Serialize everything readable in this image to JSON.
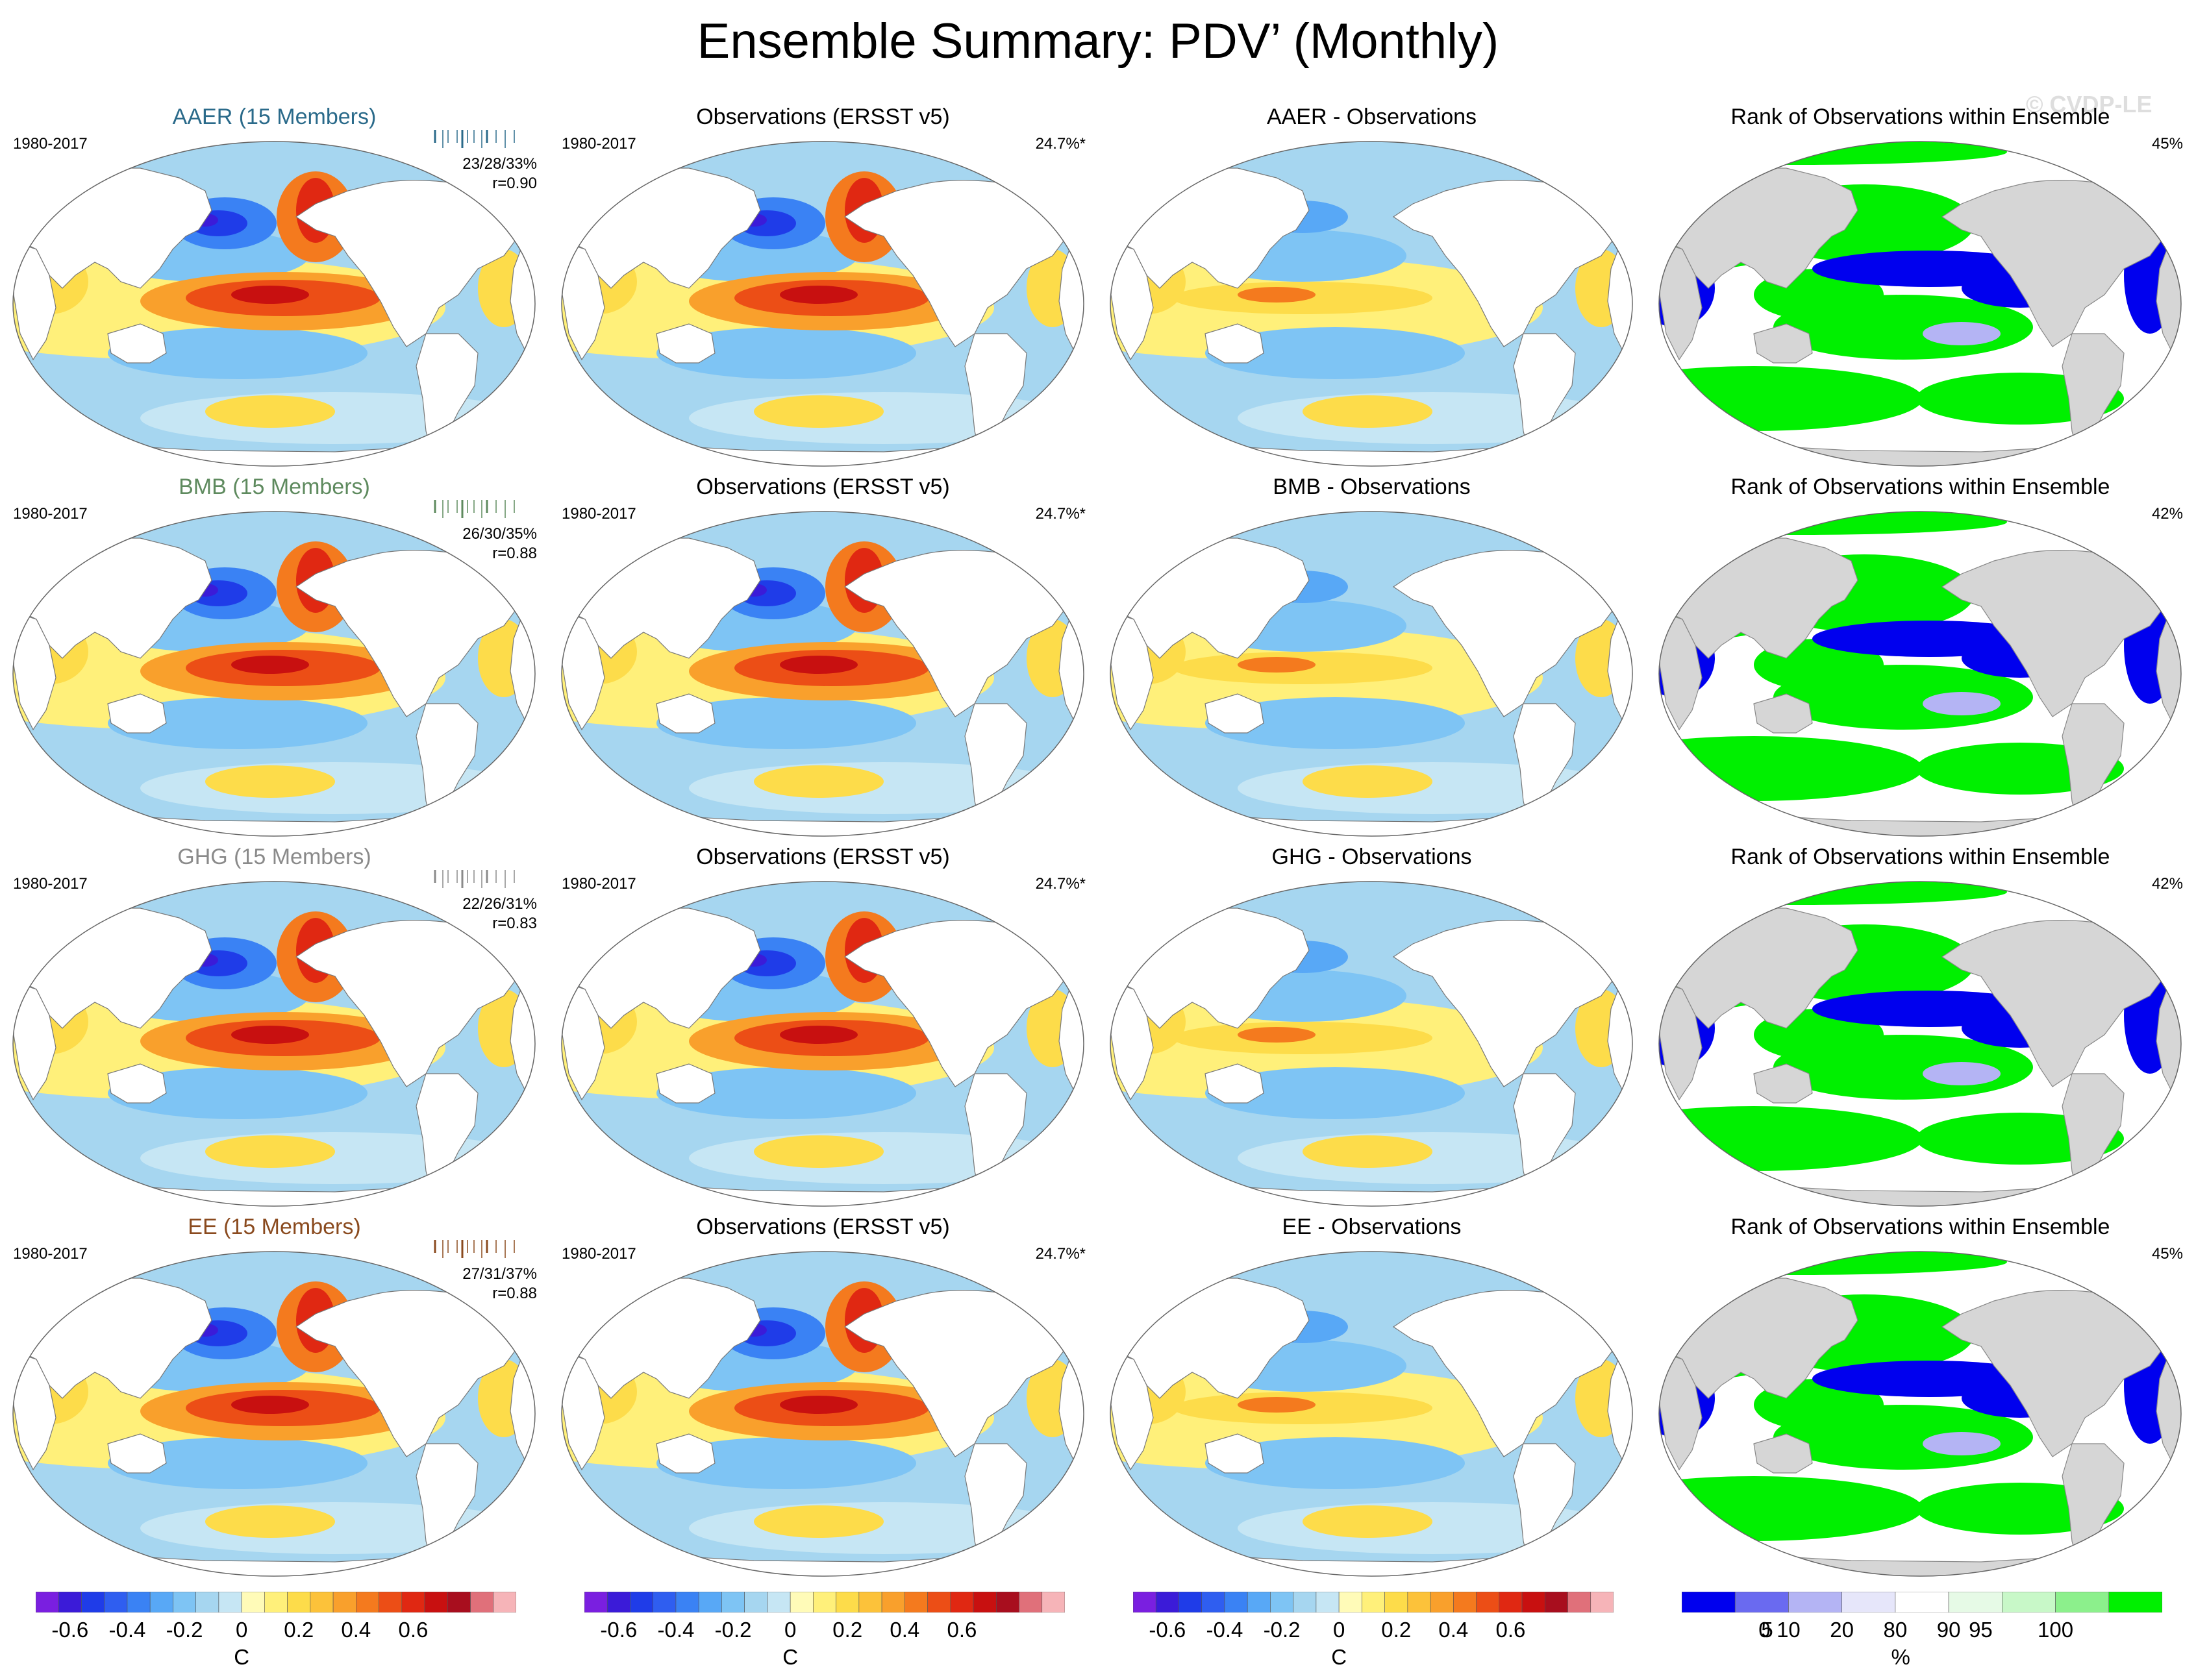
{
  "title": "Ensemble Summary: PDV’ (Monthly)",
  "watermark": "© CVDP-LE",
  "colors": {
    "diverging": [
      "#7a1fe0",
      "#3b1bd8",
      "#1f3ce8",
      "#2f5ef0",
      "#3a82f4",
      "#58a8f6",
      "#7ec4f4",
      "#a6d6f0",
      "#c6e6f4",
      "#fffbb8",
      "#fff07a",
      "#fddc4a",
      "#fcc23a",
      "#f9a02c",
      "#f47a1e",
      "#ec4e16",
      "#e02812",
      "#c81010",
      "#a80e1e",
      "#e0707a",
      "#f6b4b8"
    ],
    "rank": [
      "#0000ee",
      "#6a6af0",
      "#b4b4f4",
      "#e6e6fa",
      "#ffffff",
      "#e6fae6",
      "#c8f8c8",
      "#8cf08c",
      "#00f000"
    ]
  },
  "rows": [
    {
      "ensemble": {
        "title": "AAER (15 Members)",
        "color": "#2a6a8a",
        "period": "1980-2017",
        "stats": "23/28/33%",
        "r": "r=0.90"
      },
      "obs": {
        "title": "Observations (ERSST v5)",
        "period": "1980-2017",
        "pct": "24.7%*"
      },
      "diff": {
        "title": "AAER - Observations"
      },
      "rank": {
        "title": "Rank of Observations within Ensemble",
        "pct": "45%"
      }
    },
    {
      "ensemble": {
        "title": "BMB (15 Members)",
        "color": "#5e8a5e",
        "period": "1980-2017",
        "stats": "26/30/35%",
        "r": "r=0.88"
      },
      "obs": {
        "title": "Observations (ERSST v5)",
        "period": "1980-2017",
        "pct": "24.7%*"
      },
      "diff": {
        "title": "BMB - Observations"
      },
      "rank": {
        "title": "Rank of Observations within Ensemble",
        "pct": "42%"
      }
    },
    {
      "ensemble": {
        "title": "GHG (15 Members)",
        "color": "#8a8a8a",
        "period": "1980-2017",
        "stats": "22/26/31%",
        "r": "r=0.83"
      },
      "obs": {
        "title": "Observations (ERSST v5)",
        "period": "1980-2017",
        "pct": "24.7%*"
      },
      "diff": {
        "title": "GHG - Observations"
      },
      "rank": {
        "title": "Rank of Observations within Ensemble",
        "pct": "42%"
      }
    },
    {
      "ensemble": {
        "title": "EE (15 Members)",
        "color": "#8a4a1e",
        "period": "1980-2017",
        "stats": "27/31/37%",
        "r": "r=0.88"
      },
      "obs": {
        "title": "Observations (ERSST v5)",
        "period": "1980-2017",
        "pct": "24.7%*"
      },
      "diff": {
        "title": "EE - Observations"
      },
      "rank": {
        "title": "Rank of Observations within Ensemble",
        "pct": "45%"
      }
    }
  ],
  "colorbars": [
    {
      "labels": [
        "-0.6",
        "-0.4",
        "-0.2",
        "0",
        "0.2",
        "0.4",
        "0.6"
      ],
      "unit": "C"
    },
    {
      "labels": [
        "-0.6",
        "-0.4",
        "-0.2",
        "0",
        "0.2",
        "0.4",
        "0.6"
      ],
      "unit": "C"
    },
    {
      "labels": [
        "-0.6",
        "-0.4",
        "-0.2",
        "0",
        "0.2",
        "0.4",
        "0.6"
      ],
      "unit": "C"
    },
    {
      "labels": [
        "0",
        "5",
        "10",
        "20",
        "80",
        "90",
        "95",
        "100"
      ],
      "unit": "%"
    }
  ]
}
